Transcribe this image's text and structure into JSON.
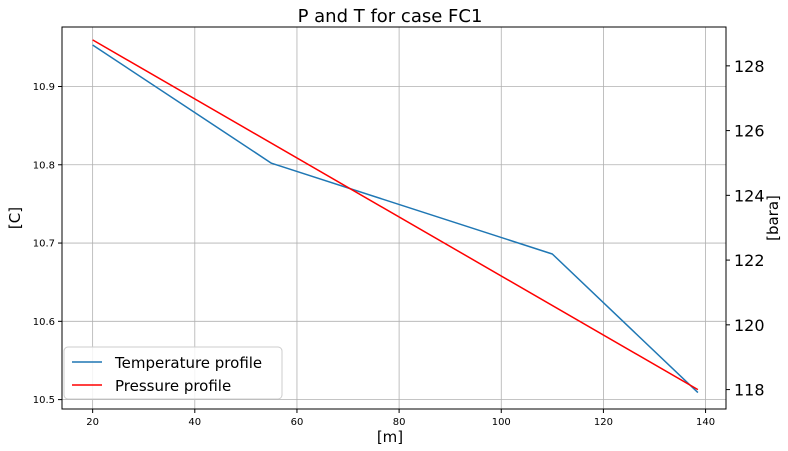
{
  "chart_data": {
    "type": "line",
    "title": "P and T for case FC1",
    "xlabel": "[m]",
    "ylabel_left": "[C]",
    "ylabel_right": "[bara]",
    "xlim": [
      14,
      144
    ],
    "ylim_left": [
      10.488,
      10.976
    ],
    "ylim_right": [
      117.4,
      129.2
    ],
    "x_ticks": [
      20,
      40,
      60,
      80,
      100,
      120,
      140
    ],
    "y_left_ticks": [
      10.5,
      10.6,
      10.7,
      10.8,
      10.9
    ],
    "y_right_ticks": [
      118,
      120,
      122,
      124,
      126,
      128
    ],
    "grid": true,
    "legend_position": "lower-left",
    "series": [
      {
        "name": "Temperature profile",
        "axis": "left",
        "color": "#1f77b4",
        "x": [
          20,
          55,
          110,
          138.5
        ],
        "y": [
          10.953,
          10.802,
          10.686,
          10.509
        ]
      },
      {
        "name": "Pressure profile",
        "axis": "right",
        "color": "#ff0000",
        "x": [
          20,
          138.5
        ],
        "y": [
          128.8,
          118.0
        ]
      }
    ]
  }
}
